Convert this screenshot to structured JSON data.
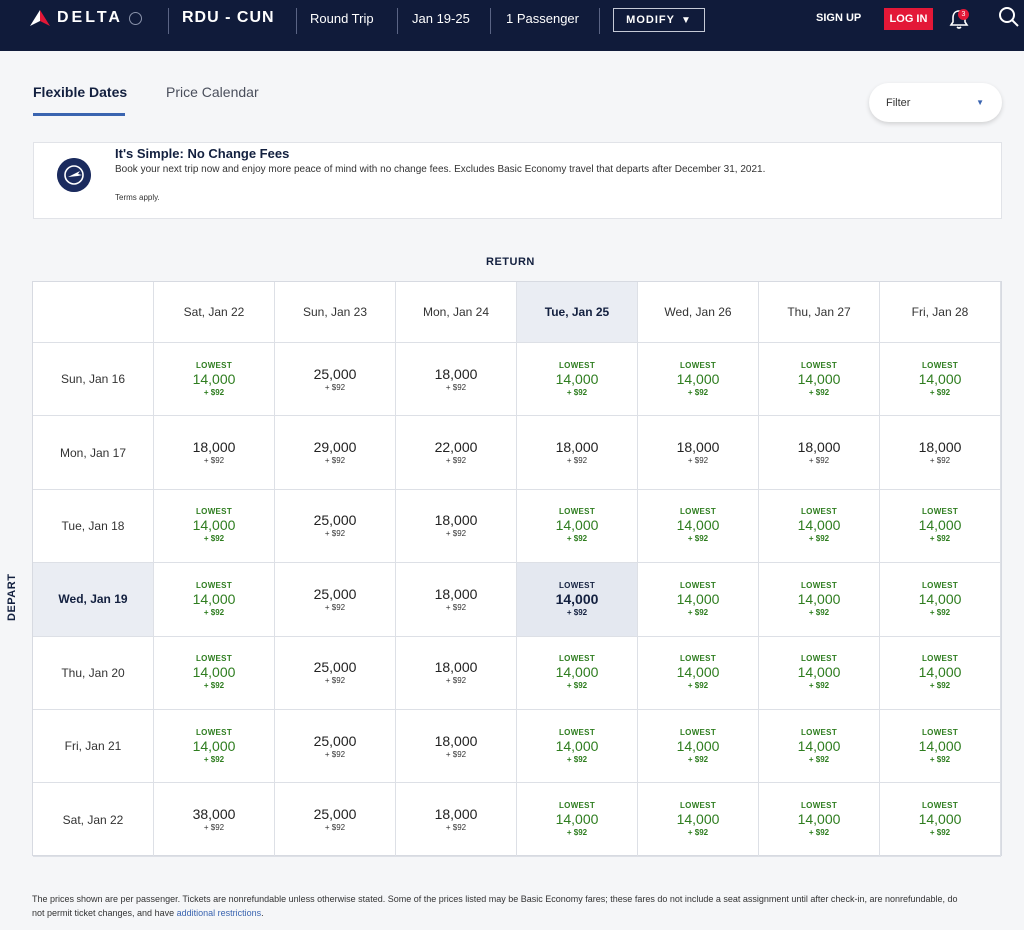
{
  "header": {
    "brand": "DELTA",
    "route": "RDU - CUN",
    "trip_type": "Round Trip",
    "dates": "Jan 19-25",
    "passengers": "1 Passenger",
    "modify_label": "MODIFY",
    "signup_label": "SIGN UP",
    "login_label": "LOG IN",
    "notification_count": "3",
    "colors": {
      "bar": "#101b3a",
      "login": "#e31837"
    }
  },
  "tabs": [
    {
      "label": "Flexible Dates",
      "active": true
    },
    {
      "label": "Price Calendar",
      "active": false
    }
  ],
  "filter": {
    "label": "Filter"
  },
  "banner": {
    "title": "It's Simple: No Change Fees",
    "body": "Book your next trip now and enjoy more peace of mind with no change fees. Excludes Basic Economy travel that departs after December 31, 2021.",
    "terms": "Terms apply."
  },
  "grid": {
    "return_label": "RETURN",
    "depart_label": "DEPART",
    "return_dates": [
      "Sat, Jan 22",
      "Sun, Jan 23",
      "Mon, Jan 24",
      "Tue, Jan 25",
      "Wed, Jan 26",
      "Thu, Jan 27",
      "Fri, Jan 28"
    ],
    "selected_return_index": 3,
    "selected_depart_index": 3,
    "lowest_label": "LOWEST",
    "tax": "+ $92",
    "rows": [
      {
        "depart": "Sun, Jan 16",
        "fares": [
          {
            "miles": "14,000",
            "lowest": true
          },
          {
            "miles": "25,000",
            "lowest": false
          },
          {
            "miles": "18,000",
            "lowest": false
          },
          {
            "miles": "14,000",
            "lowest": true
          },
          {
            "miles": "14,000",
            "lowest": true
          },
          {
            "miles": "14,000",
            "lowest": true
          },
          {
            "miles": "14,000",
            "lowest": true
          }
        ]
      },
      {
        "depart": "Mon, Jan 17",
        "fares": [
          {
            "miles": "18,000",
            "lowest": false
          },
          {
            "miles": "29,000",
            "lowest": false
          },
          {
            "miles": "22,000",
            "lowest": false
          },
          {
            "miles": "18,000",
            "lowest": false
          },
          {
            "miles": "18,000",
            "lowest": false
          },
          {
            "miles": "18,000",
            "lowest": false
          },
          {
            "miles": "18,000",
            "lowest": false
          }
        ]
      },
      {
        "depart": "Tue, Jan 18",
        "fares": [
          {
            "miles": "14,000",
            "lowest": true
          },
          {
            "miles": "25,000",
            "lowest": false
          },
          {
            "miles": "18,000",
            "lowest": false
          },
          {
            "miles": "14,000",
            "lowest": true
          },
          {
            "miles": "14,000",
            "lowest": true
          },
          {
            "miles": "14,000",
            "lowest": true
          },
          {
            "miles": "14,000",
            "lowest": true
          }
        ]
      },
      {
        "depart": "Wed, Jan 19",
        "fares": [
          {
            "miles": "14,000",
            "lowest": true
          },
          {
            "miles": "25,000",
            "lowest": false
          },
          {
            "miles": "18,000",
            "lowest": false
          },
          {
            "miles": "14,000",
            "lowest": true
          },
          {
            "miles": "14,000",
            "lowest": true
          },
          {
            "miles": "14,000",
            "lowest": true
          },
          {
            "miles": "14,000",
            "lowest": true
          }
        ]
      },
      {
        "depart": "Thu, Jan 20",
        "fares": [
          {
            "miles": "14,000",
            "lowest": true
          },
          {
            "miles": "25,000",
            "lowest": false
          },
          {
            "miles": "18,000",
            "lowest": false
          },
          {
            "miles": "14,000",
            "lowest": true
          },
          {
            "miles": "14,000",
            "lowest": true
          },
          {
            "miles": "14,000",
            "lowest": true
          },
          {
            "miles": "14,000",
            "lowest": true
          }
        ]
      },
      {
        "depart": "Fri, Jan 21",
        "fares": [
          {
            "miles": "14,000",
            "lowest": true
          },
          {
            "miles": "25,000",
            "lowest": false
          },
          {
            "miles": "18,000",
            "lowest": false
          },
          {
            "miles": "14,000",
            "lowest": true
          },
          {
            "miles": "14,000",
            "lowest": true
          },
          {
            "miles": "14,000",
            "lowest": true
          },
          {
            "miles": "14,000",
            "lowest": true
          }
        ]
      },
      {
        "depart": "Sat, Jan 22",
        "fares": [
          {
            "miles": "38,000",
            "lowest": false
          },
          {
            "miles": "25,000",
            "lowest": false
          },
          {
            "miles": "18,000",
            "lowest": false
          },
          {
            "miles": "14,000",
            "lowest": true
          },
          {
            "miles": "14,000",
            "lowest": true
          },
          {
            "miles": "14,000",
            "lowest": true
          },
          {
            "miles": "14,000",
            "lowest": true
          }
        ]
      }
    ]
  },
  "footnote": {
    "text": "The prices shown are per passenger. Tickets are nonrefundable unless otherwise stated. Some of the prices listed may be Basic Economy fares; these fares do not include a seat assignment until after check-in, are nonrefundable, do not permit ticket changes, and have ",
    "link": "additional restrictions",
    "end": "."
  }
}
